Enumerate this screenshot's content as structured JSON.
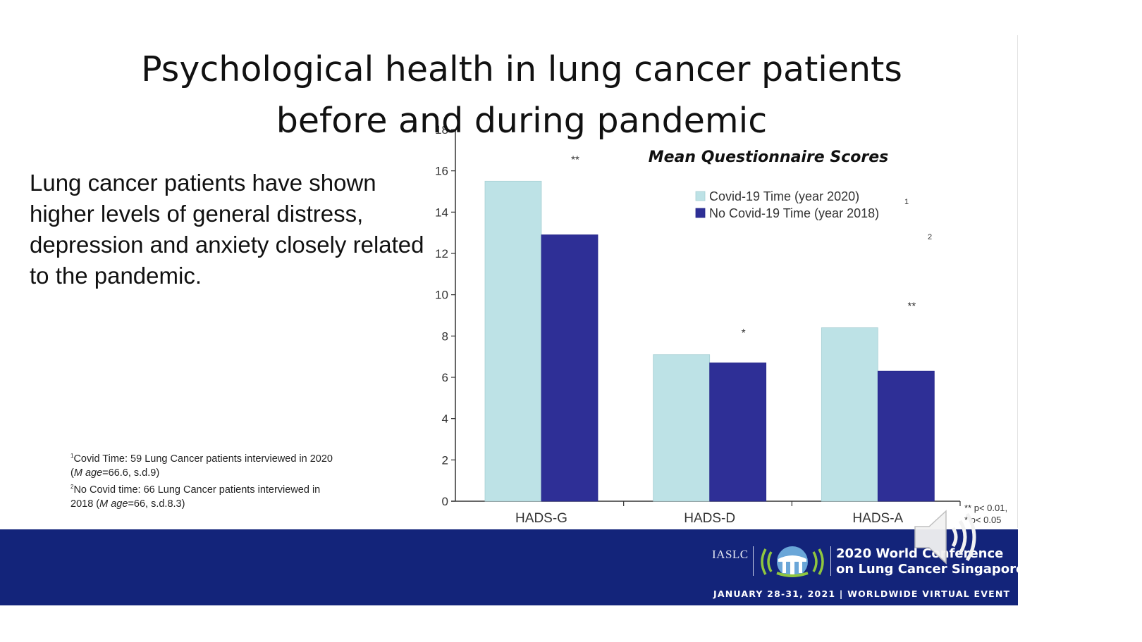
{
  "slide": {
    "title_line1": "Psychological health in lung cancer patients",
    "title_line2": "before and during pandemic",
    "body": "Lung cancer patients have shown higher levels of general distress, depression and anxiety closely related to the pandemic.",
    "footnote1_sup": "1",
    "footnote1_text": "Covid Time: 59 Lung Cancer patients interviewed in 2020",
    "footnote1_m": "M age",
    "footnote1_rest": "=66.6, s.d.9)",
    "footnote2_sup": "2",
    "footnote2_text": "No Covid time: 66 Lung Cancer patients interviewed in",
    "footnote2_cont": "2018 (",
    "footnote2_m": "M age",
    "footnote2_rest": "=66, s.d.8.3)"
  },
  "chart_data": {
    "type": "bar",
    "title": "Mean Questionnaire Scores",
    "categories": [
      "HADS-G",
      "HADS-D",
      "HADS-A"
    ],
    "series": [
      {
        "name": "Covid-19 Time (year 2020)",
        "values": [
          15.5,
          7.1,
          8.4
        ],
        "color": "#bde2e6"
      },
      {
        "name": "No Covid-19 Time (year 2018)",
        "values": [
          12.9,
          6.7,
          6.3
        ],
        "color": "#2e2f96"
      }
    ],
    "significance": [
      "**",
      "*",
      "**"
    ],
    "legend_marks": [
      "1",
      "2"
    ],
    "significance_note": [
      "** p< 0.01,",
      "* p< 0.05"
    ],
    "ylim": [
      0,
      18
    ],
    "yticks": [
      0,
      2,
      4,
      6,
      8,
      10,
      12,
      14,
      16,
      18
    ],
    "legend_position": "top-right",
    "grid": false
  },
  "footer": {
    "org": "IASLC",
    "conference_line1": "2020 World Conference",
    "conference_line2": "on Lung Cancer Singapore",
    "dates": "JANUARY 28-31, 2021 | WORLDWIDE VIRTUAL EVENT",
    "background": "#13247a"
  },
  "icons": {
    "logo": "conference-logo-icon",
    "speaker": "speaker-icon"
  }
}
